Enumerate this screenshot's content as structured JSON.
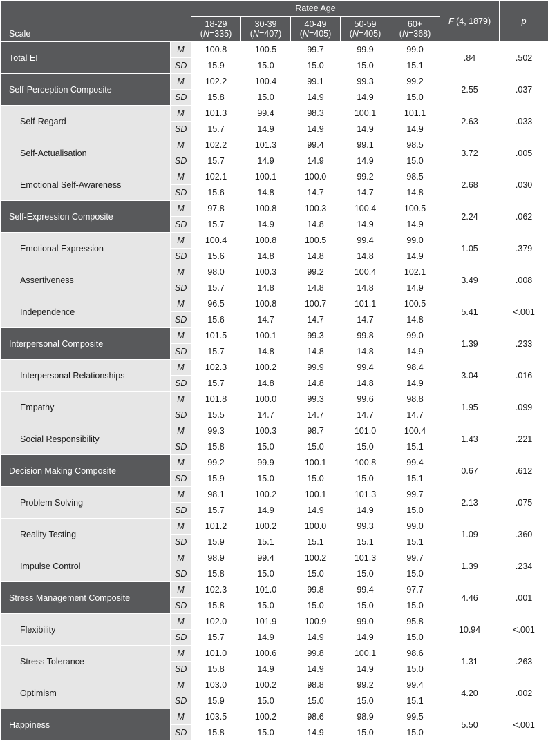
{
  "header": {
    "scale_label": "Scale",
    "ratee_age_label": "Ratee Age",
    "f_label_html": "<span class=\"ital\">F</span> (4, 1879)",
    "p_label": "p",
    "age_columns": [
      {
        "range": "18-29",
        "n_html": "(<span class=\"ital\">N</span>=335)"
      },
      {
        "range": "30-39",
        "n_html": "(<span class=\"ital\">N</span>=407)"
      },
      {
        "range": "40-49",
        "n_html": "(<span class=\"ital\">N</span>=405)"
      },
      {
        "range": "50-59",
        "n_html": "(<span class=\"ital\">N</span>=405)"
      },
      {
        "range": "60+",
        "n_html": "(<span class=\"ital\">N</span>=368)"
      }
    ]
  },
  "styling": {
    "header_bg": "#58595b",
    "composite_bg": "#58595b",
    "sub_bg": "#e6e6e6",
    "cell_bg": "#ffffff",
    "border_color": "#ffffff",
    "text_color": "#1b1b1b",
    "header_text_color": "#ffffff",
    "font_size_pt": 9.5
  },
  "scales": [
    {
      "label": "Total EI",
      "level": "composite",
      "M": [
        "100.8",
        "100.5",
        "99.7",
        "99.9",
        "99.0"
      ],
      "SD": [
        "15.9",
        "15.0",
        "15.0",
        "15.0",
        "15.1"
      ],
      "F": ".84",
      "p": ".502"
    },
    {
      "label": "Self-Perception Composite",
      "level": "composite",
      "M": [
        "102.2",
        "100.4",
        "99.1",
        "99.3",
        "99.2"
      ],
      "SD": [
        "15.8",
        "15.0",
        "14.9",
        "14.9",
        "15.0"
      ],
      "F": "2.55",
      "p": ".037"
    },
    {
      "label": "Self-Regard",
      "level": "sub",
      "M": [
        "101.3",
        "99.4",
        "98.3",
        "100.1",
        "101.1"
      ],
      "SD": [
        "15.7",
        "14.9",
        "14.9",
        "14.9",
        "14.9"
      ],
      "F": "2.63",
      "p": ".033"
    },
    {
      "label": "Self-Actualisation",
      "level": "sub",
      "M": [
        "102.2",
        "101.3",
        "99.4",
        "99.1",
        "98.5"
      ],
      "SD": [
        "15.7",
        "14.9",
        "14.9",
        "14.9",
        "15.0"
      ],
      "F": "3.72",
      "p": ".005"
    },
    {
      "label": "Emotional Self-Awareness",
      "level": "sub",
      "M": [
        "102.1",
        "100.1",
        "100.0",
        "99.2",
        "98.5"
      ],
      "SD": [
        "15.6",
        "14.8",
        "14.7",
        "14.7",
        "14.8"
      ],
      "F": "2.68",
      "p": ".030"
    },
    {
      "label": "Self-Expression Composite",
      "level": "composite",
      "M": [
        "97.8",
        "100.8",
        "100.3",
        "100.4",
        "100.5"
      ],
      "SD": [
        "15.7",
        "14.9",
        "14.8",
        "14.9",
        "14.9"
      ],
      "F": "2.24",
      "p": ".062"
    },
    {
      "label": "Emotional Expression",
      "level": "sub",
      "M": [
        "100.4",
        "100.8",
        "100.5",
        "99.4",
        "99.0"
      ],
      "SD": [
        "15.6",
        "14.8",
        "14.8",
        "14.8",
        "14.9"
      ],
      "F": "1.05",
      "p": ".379"
    },
    {
      "label": "Assertiveness",
      "level": "sub",
      "M": [
        "98.0",
        "100.3",
        "99.2",
        "100.4",
        "102.1"
      ],
      "SD": [
        "15.7",
        "14.8",
        "14.8",
        "14.8",
        "14.9"
      ],
      "F": "3.49",
      "p": ".008"
    },
    {
      "label": "Independence",
      "level": "sub",
      "M": [
        "96.5",
        "100.8",
        "100.7",
        "101.1",
        "100.5"
      ],
      "SD": [
        "15.6",
        "14.7",
        "14.7",
        "14.7",
        "14.8"
      ],
      "F": "5.41",
      "p": "<.001"
    },
    {
      "label": "Interpersonal Composite",
      "level": "composite",
      "M": [
        "101.5",
        "100.1",
        "99.3",
        "99.8",
        "99.0"
      ],
      "SD": [
        "15.7",
        "14.8",
        "14.8",
        "14.8",
        "14.9"
      ],
      "F": "1.39",
      "p": ".233"
    },
    {
      "label": "Interpersonal Relationships",
      "level": "sub",
      "M": [
        "102.3",
        "100.2",
        "99.9",
        "99.4",
        "98.4"
      ],
      "SD": [
        "15.7",
        "14.8",
        "14.8",
        "14.8",
        "14.9"
      ],
      "F": "3.04",
      "p": ".016"
    },
    {
      "label": "Empathy",
      "level": "sub",
      "M": [
        "101.8",
        "100.0",
        "99.3",
        "99.6",
        "98.8"
      ],
      "SD": [
        "15.5",
        "14.7",
        "14.7",
        "14.7",
        "14.7"
      ],
      "F": "1.95",
      "p": ".099"
    },
    {
      "label": "Social Responsibility",
      "level": "sub",
      "M": [
        "99.3",
        "100.3",
        "98.7",
        "101.0",
        "100.4"
      ],
      "SD": [
        "15.8",
        "15.0",
        "15.0",
        "15.0",
        "15.1"
      ],
      "F": "1.43",
      "p": ".221"
    },
    {
      "label": "Decision Making Composite",
      "level": "composite",
      "M": [
        "99.2",
        "99.9",
        "100.1",
        "100.8",
        "99.4"
      ],
      "SD": [
        "15.9",
        "15.0",
        "15.0",
        "15.0",
        "15.1"
      ],
      "F": "0.67",
      "p": ".612"
    },
    {
      "label": "Problem Solving",
      "level": "sub",
      "M": [
        "98.1",
        "100.2",
        "100.1",
        "101.3",
        "99.7"
      ],
      "SD": [
        "15.7",
        "14.9",
        "14.9",
        "14.9",
        "15.0"
      ],
      "F": "2.13",
      "p": ".075"
    },
    {
      "label": "Reality Testing",
      "level": "sub",
      "M": [
        "101.2",
        "100.2",
        "100.0",
        "99.3",
        "99.0"
      ],
      "SD": [
        "15.9",
        "15.1",
        "15.1",
        "15.1",
        "15.1"
      ],
      "F": "1.09",
      "p": ".360"
    },
    {
      "label": "Impulse Control",
      "level": "sub",
      "M": [
        "98.9",
        "99.4",
        "100.2",
        "101.3",
        "99.7"
      ],
      "SD": [
        "15.8",
        "15.0",
        "15.0",
        "15.0",
        "15.0"
      ],
      "F": "1.39",
      "p": ".234"
    },
    {
      "label": "Stress Management Composite",
      "level": "composite",
      "M": [
        "102.3",
        "101.0",
        "99.8",
        "99.4",
        "97.7"
      ],
      "SD": [
        "15.8",
        "15.0",
        "15.0",
        "15.0",
        "15.0"
      ],
      "F": "4.46",
      "p": ".001"
    },
    {
      "label": "Flexibility",
      "level": "sub",
      "M": [
        "102.0",
        "101.9",
        "100.9",
        "99.0",
        "95.8"
      ],
      "SD": [
        "15.7",
        "14.9",
        "14.9",
        "14.9",
        "15.0"
      ],
      "F": "10.94",
      "p": "<.001"
    },
    {
      "label": "Stress Tolerance",
      "level": "sub",
      "M": [
        "101.0",
        "100.6",
        "99.8",
        "100.1",
        "98.6"
      ],
      "SD": [
        "15.8",
        "14.9",
        "14.9",
        "14.9",
        "15.0"
      ],
      "F": "1.31",
      "p": ".263"
    },
    {
      "label": "Optimism",
      "level": "sub",
      "M": [
        "103.0",
        "100.2",
        "98.8",
        "99.2",
        "99.4"
      ],
      "SD": [
        "15.9",
        "15.0",
        "15.0",
        "15.0",
        "15.1"
      ],
      "F": "4.20",
      "p": ".002"
    },
    {
      "label": "Happiness",
      "level": "composite",
      "M": [
        "103.5",
        "100.2",
        "98.6",
        "98.9",
        "99.5"
      ],
      "SD": [
        "15.8",
        "15.0",
        "14.9",
        "15.0",
        "15.0"
      ],
      "F": "5.50",
      "p": "<.001"
    }
  ]
}
